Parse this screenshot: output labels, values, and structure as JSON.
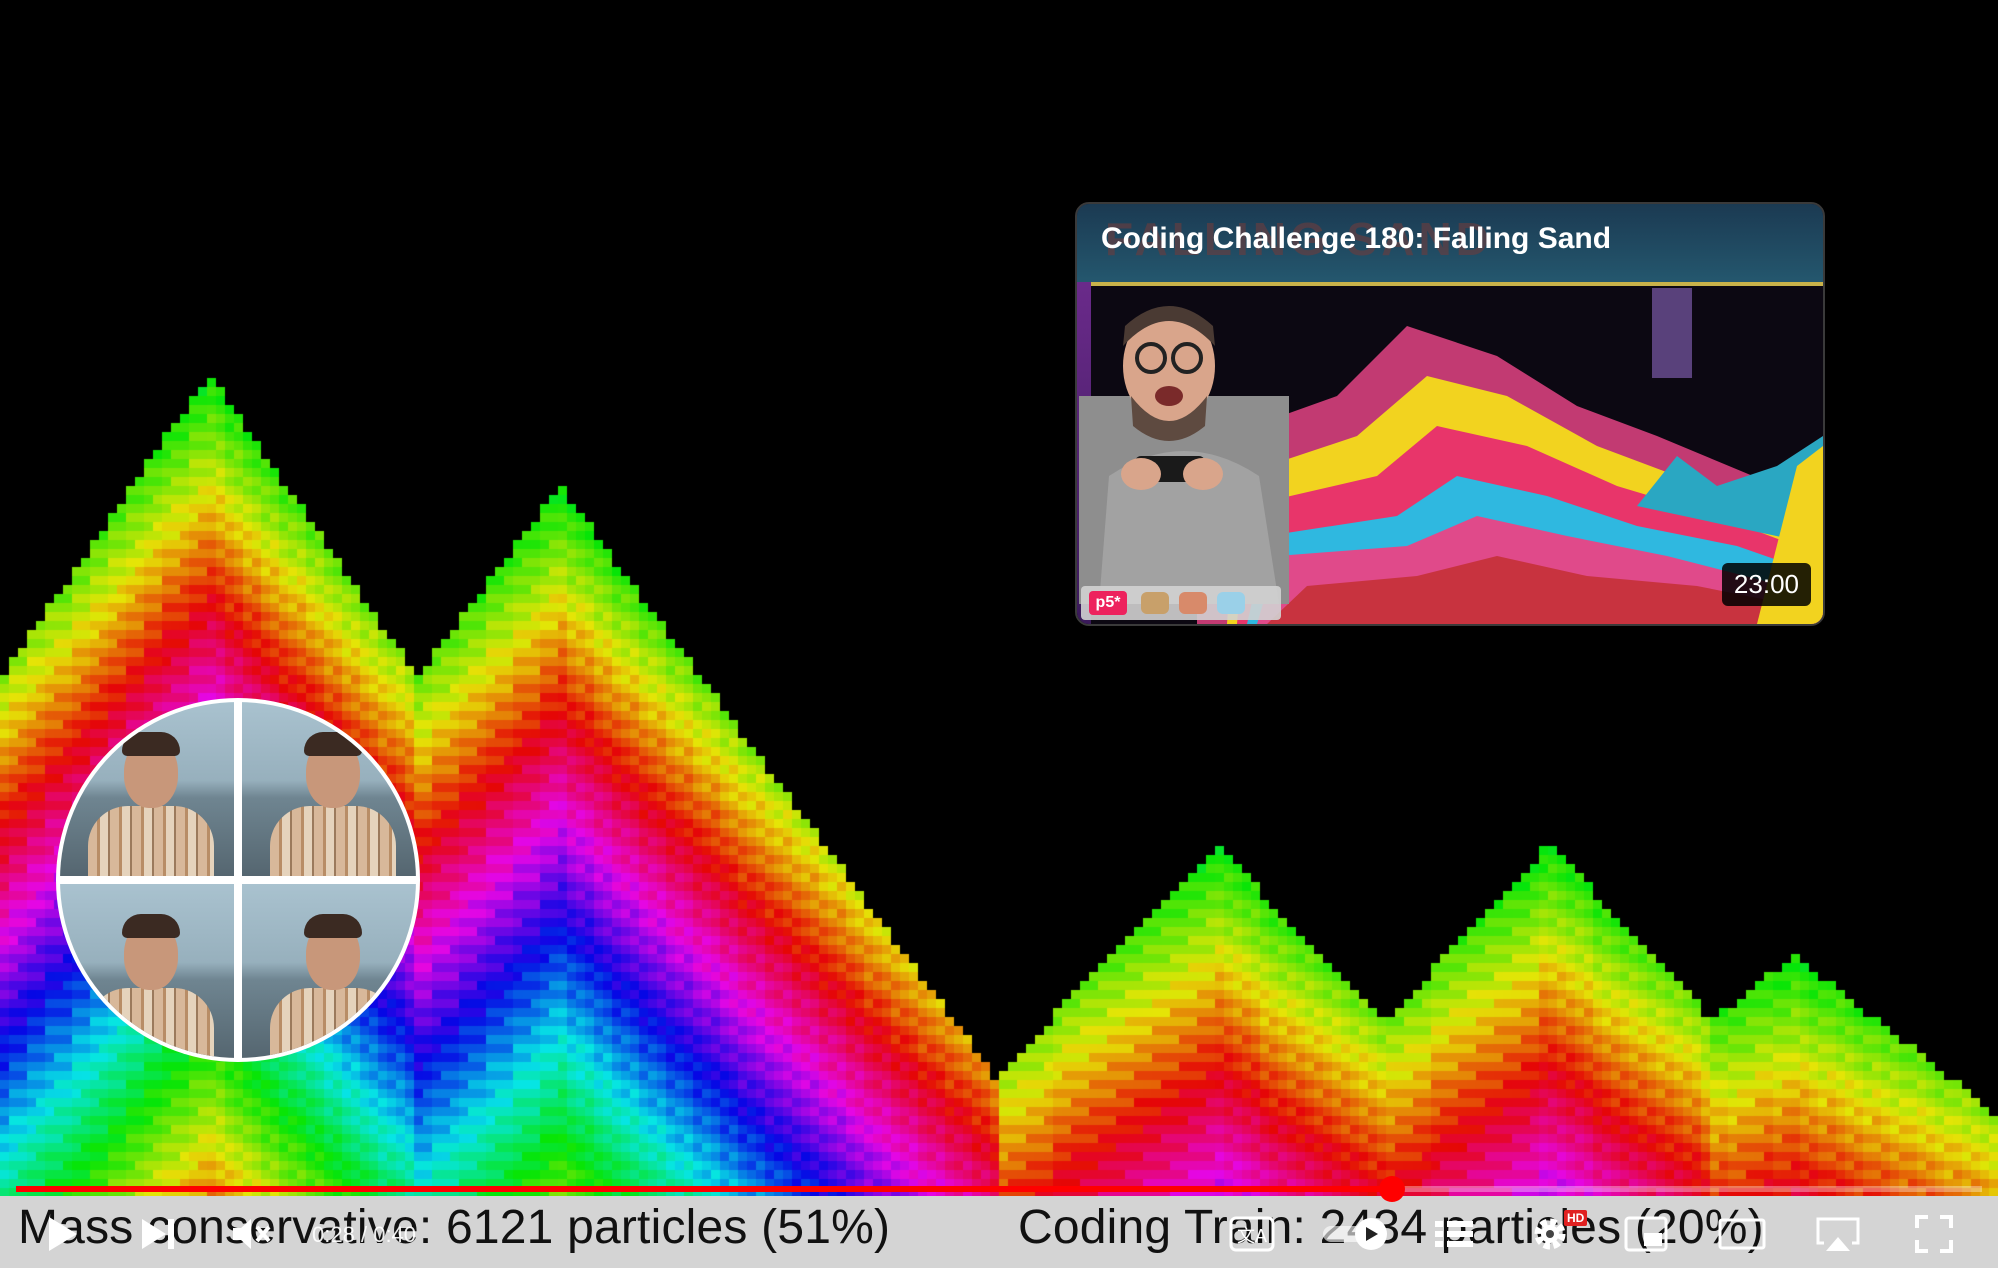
{
  "video": {
    "overlay_text": {
      "left": "Mass conservative: 6121 particles (51%)",
      "right": "Coding Train: 2434 particles (20%)"
    }
  },
  "endscreen": {
    "title": "Coding Challenge 180: Falling Sand",
    "duration": "23:00",
    "ghost_text": "FALLING SAND",
    "p5_label": "p5*"
  },
  "player": {
    "time_current": "0:28",
    "time_separator": "/",
    "time_total": "0:40",
    "played_fraction": 0.7,
    "hd_badge": "HD",
    "accent_color": "#ff0000"
  },
  "controls": {
    "icons": [
      "play-icon",
      "next-icon",
      "mute-icon",
      "subtitles-icon",
      "autoplay-toggle-icon",
      "chapters-icon",
      "settings-icon",
      "miniplayer-icon",
      "theater-mode-icon",
      "airplay-icon",
      "fullscreen-icon"
    ]
  }
}
